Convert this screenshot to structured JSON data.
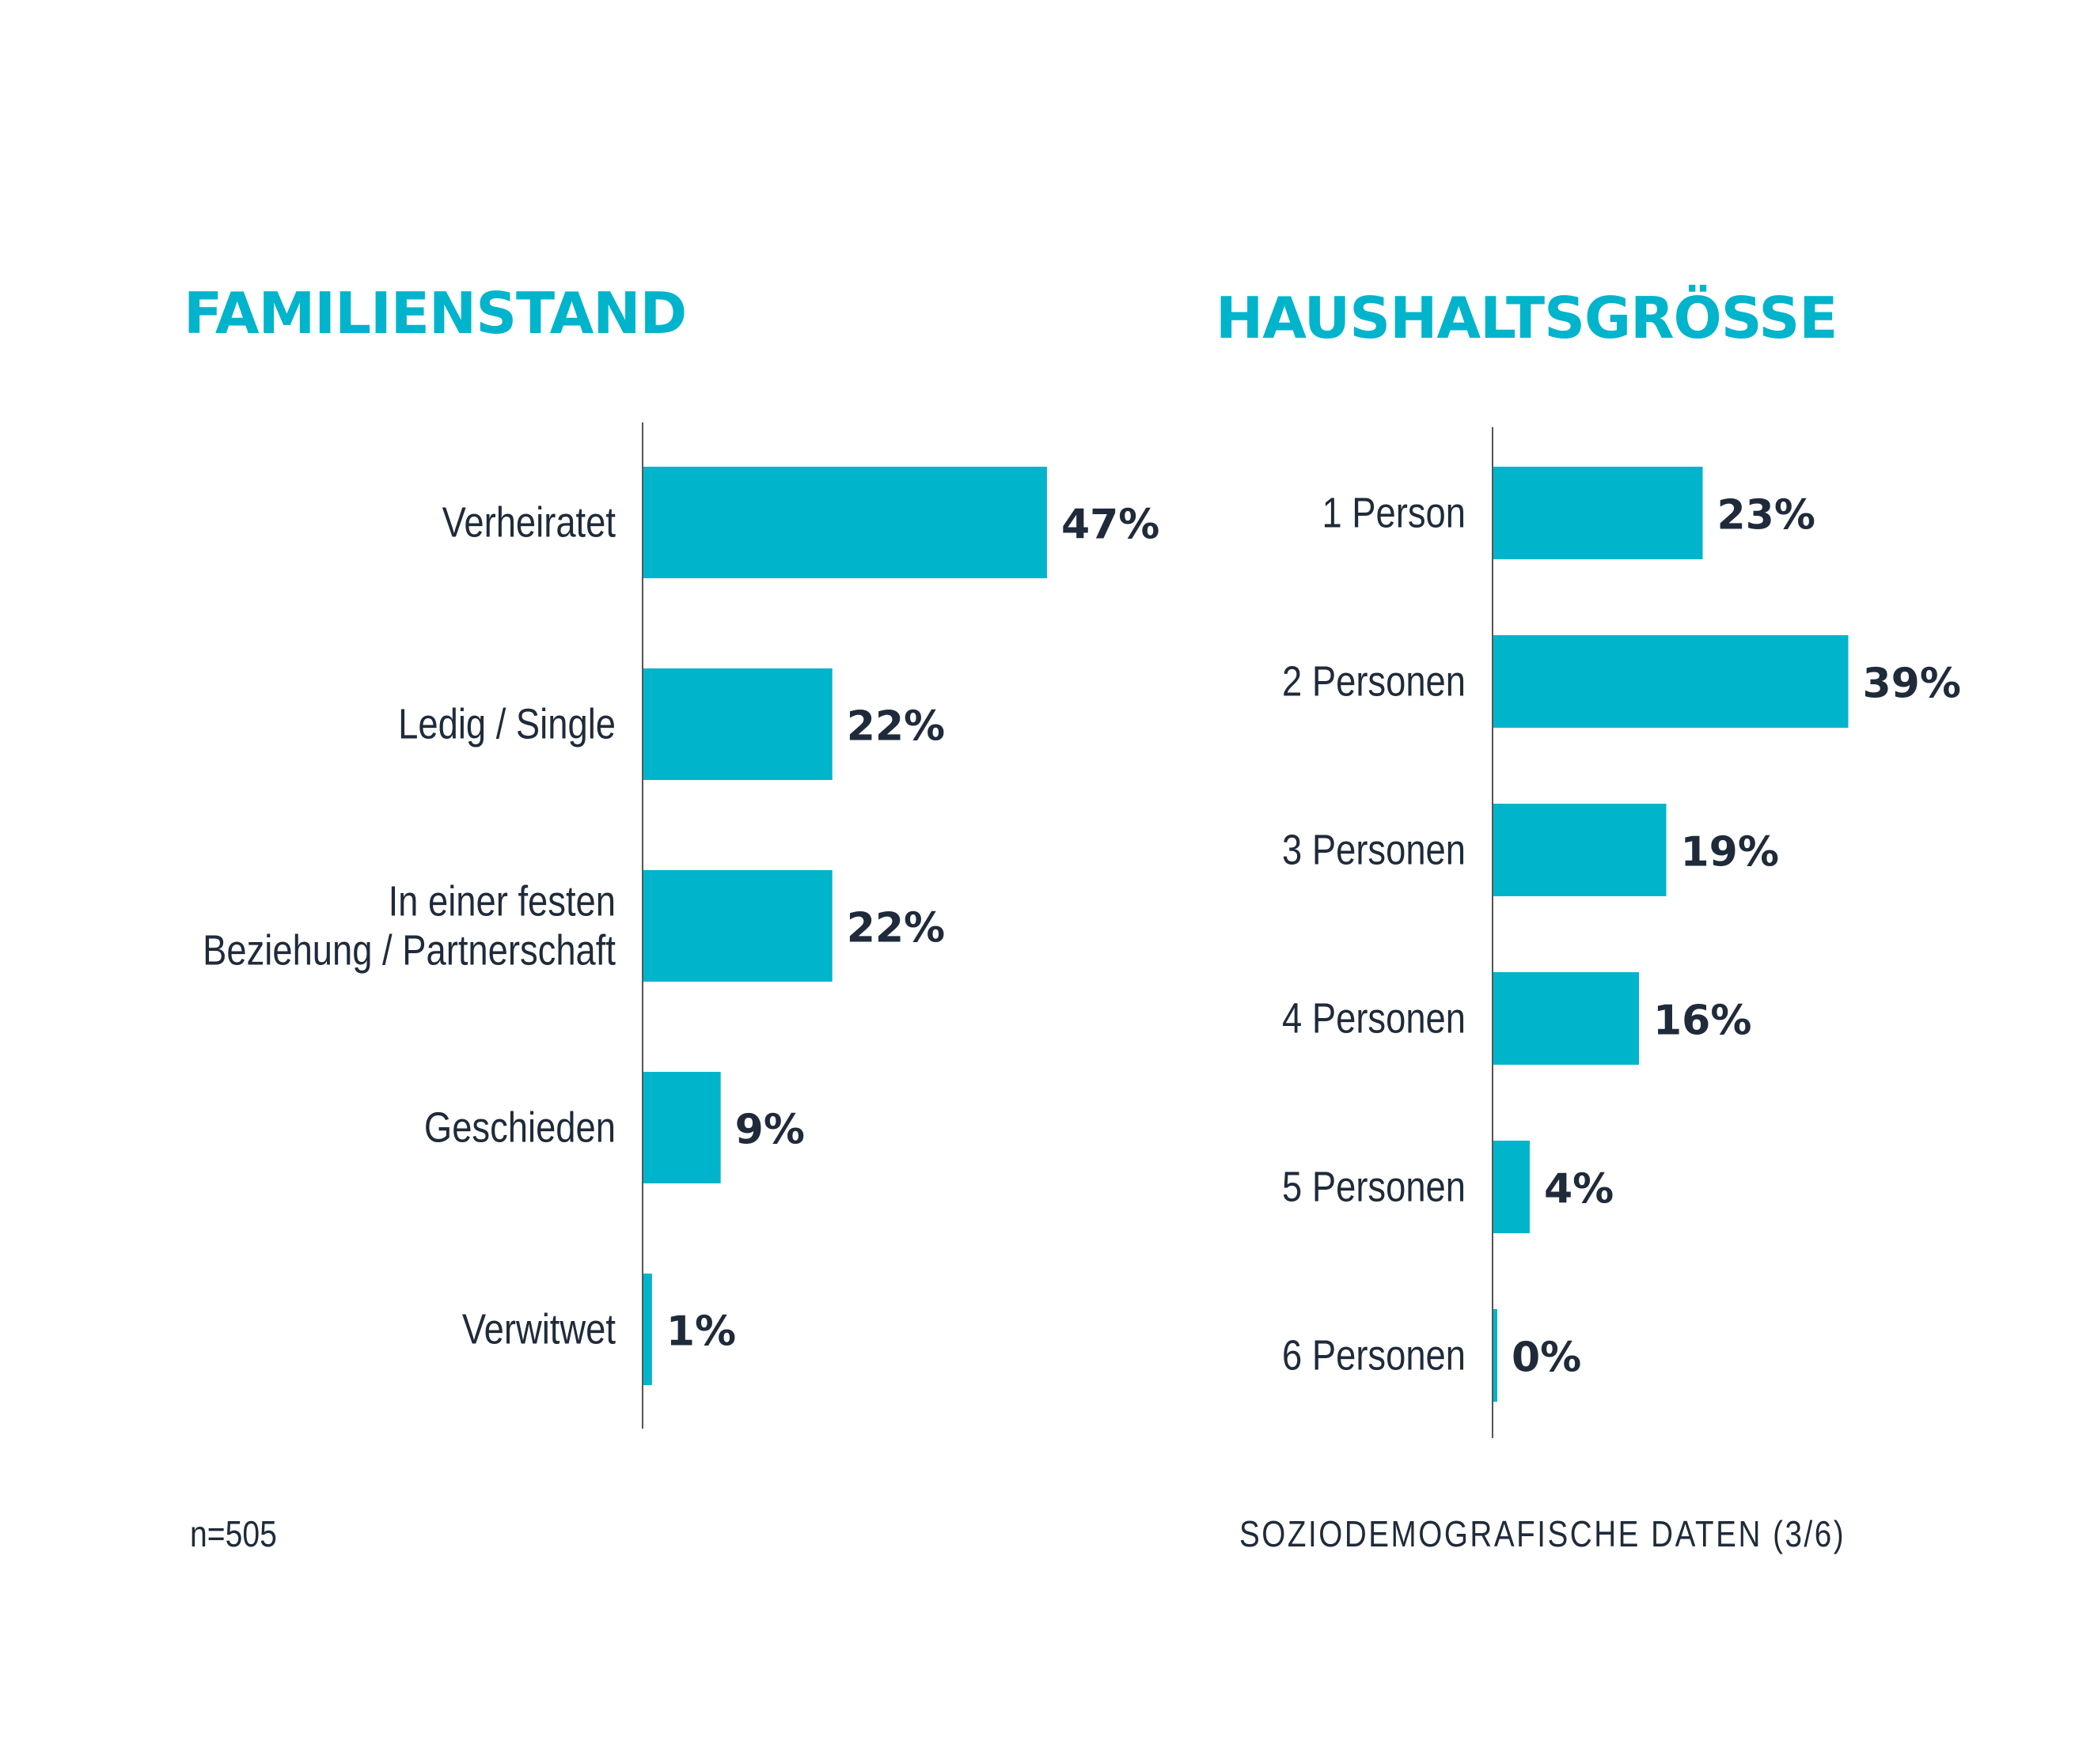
{
  "colors": {
    "accent": "#00b4cc",
    "text": "#1f2b3a",
    "axis": "#555555"
  },
  "chart_data": [
    {
      "type": "bar",
      "orientation": "horizontal",
      "title": "FAMILIENSTAND",
      "categories": [
        [
          "Verheiratet"
        ],
        [
          "Ledig / Single"
        ],
        [
          "In einer festen",
          "Beziehung / Partnerschaft"
        ],
        [
          "Geschieden"
        ],
        [
          "Verwitwet"
        ]
      ],
      "values": [
        47,
        22,
        22,
        9,
        1
      ],
      "value_labels": [
        "47%",
        "22%",
        "22%",
        "9%",
        "1%"
      ],
      "unit": "%",
      "grid": false,
      "legend": "none"
    },
    {
      "type": "bar",
      "orientation": "horizontal",
      "title": "HAUSHALTSGRÖSSE",
      "categories": [
        [
          "1 Person"
        ],
        [
          "2 Personen"
        ],
        [
          "3 Personen"
        ],
        [
          "4 Personen"
        ],
        [
          "5 Personen"
        ],
        [
          "6 Personen"
        ]
      ],
      "values": [
        23,
        39,
        19,
        16,
        4,
        0
      ],
      "value_labels": [
        "23%",
        "39%",
        "19%",
        "16%",
        "4%",
        "0%"
      ],
      "unit": "%",
      "grid": false,
      "legend": "none"
    }
  ],
  "footer": {
    "sample_size": "n=505",
    "section": "SOZIODEMOGRAFISCHE DATEN (3/6)"
  }
}
